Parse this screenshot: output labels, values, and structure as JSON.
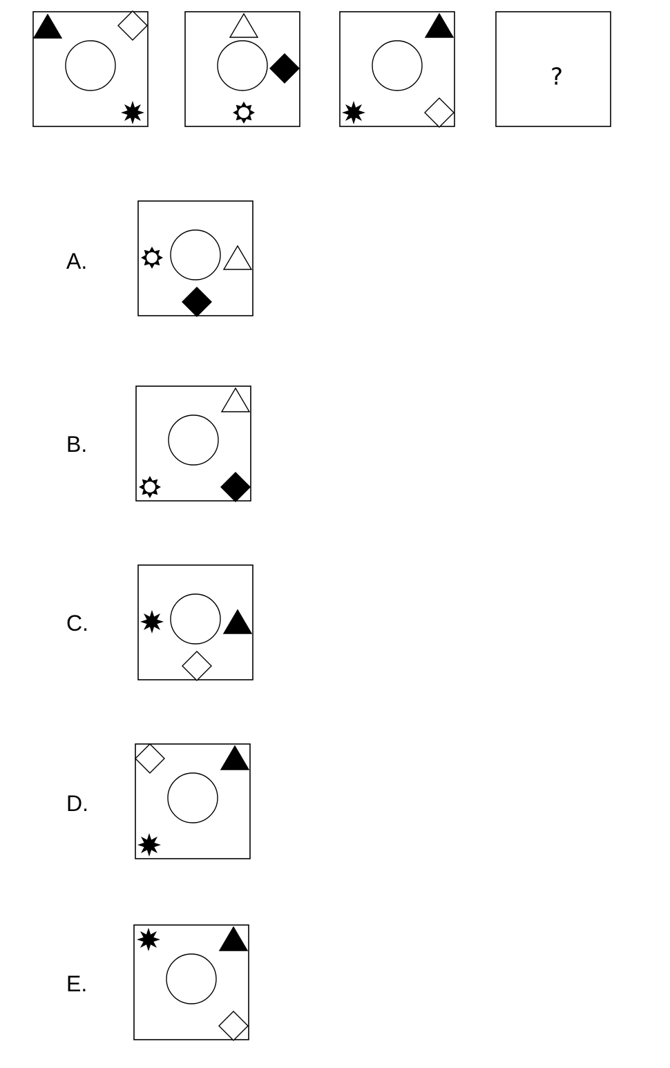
{
  "question": {
    "sequence": [
      {
        "id": "panel-1",
        "shapes": [
          {
            "type": "triangle",
            "fill": "black",
            "pos": "top-left"
          },
          {
            "type": "diamond",
            "fill": "white",
            "pos": "top-right"
          },
          {
            "type": "star8",
            "fill": "black",
            "pos": "bottom-right"
          }
        ]
      },
      {
        "id": "panel-2",
        "shapes": [
          {
            "type": "triangle",
            "fill": "white",
            "pos": "top"
          },
          {
            "type": "diamond",
            "fill": "black",
            "pos": "right"
          },
          {
            "type": "sun",
            "fill": "white",
            "pos": "bottom"
          }
        ]
      },
      {
        "id": "panel-3",
        "shapes": [
          {
            "type": "triangle",
            "fill": "black",
            "pos": "top-right"
          },
          {
            "type": "star8",
            "fill": "black",
            "pos": "bottom-left"
          },
          {
            "type": "diamond",
            "fill": "white",
            "pos": "bottom-right"
          }
        ]
      },
      {
        "id": "panel-4",
        "shapes": [],
        "mark": "?"
      }
    ]
  },
  "options": [
    {
      "label": "A.",
      "shapes": [
        {
          "type": "sun",
          "fill": "white",
          "pos": "left"
        },
        {
          "type": "triangle",
          "fill": "white",
          "pos": "right"
        },
        {
          "type": "diamond",
          "fill": "black",
          "pos": "bottom"
        }
      ]
    },
    {
      "label": "B.",
      "shapes": [
        {
          "type": "triangle",
          "fill": "white",
          "pos": "top-right"
        },
        {
          "type": "sun",
          "fill": "white",
          "pos": "bottom-left"
        },
        {
          "type": "diamond",
          "fill": "black",
          "pos": "bottom-right"
        }
      ]
    },
    {
      "label": "C.",
      "shapes": [
        {
          "type": "star8",
          "fill": "black",
          "pos": "left"
        },
        {
          "type": "triangle",
          "fill": "black",
          "pos": "right"
        },
        {
          "type": "diamond",
          "fill": "white",
          "pos": "bottom"
        }
      ]
    },
    {
      "label": "D.",
      "shapes": [
        {
          "type": "diamond",
          "fill": "white",
          "pos": "top-left"
        },
        {
          "type": "triangle",
          "fill": "black",
          "pos": "top-right"
        },
        {
          "type": "star8",
          "fill": "black",
          "pos": "bottom-left"
        }
      ]
    },
    {
      "label": "E.",
      "shapes": [
        {
          "type": "star8",
          "fill": "black",
          "pos": "top-left"
        },
        {
          "type": "triangle",
          "fill": "black",
          "pos": "top-right"
        },
        {
          "type": "diamond",
          "fill": "white",
          "pos": "bottom-right"
        }
      ]
    }
  ]
}
